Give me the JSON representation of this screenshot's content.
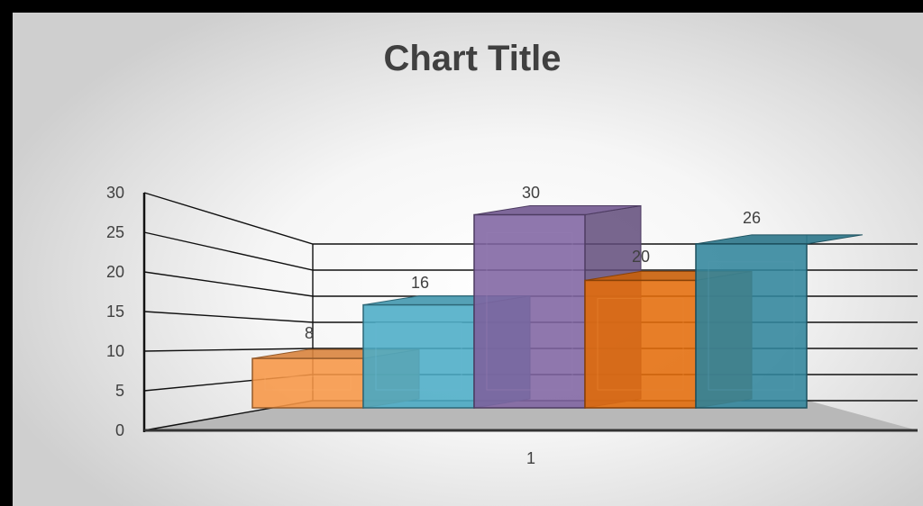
{
  "chart_data": {
    "type": "bar",
    "title": "Chart Title",
    "categories": [
      "1"
    ],
    "series": [
      {
        "values": [
          8
        ],
        "color": "#F79646"
      },
      {
        "values": [
          16
        ],
        "color": "#4BACC6"
      },
      {
        "values": [
          30
        ],
        "color": "#8064A2"
      },
      {
        "values": [
          20
        ],
        "color": "#E46C0A"
      },
      {
        "values": [
          26
        ],
        "color": "#31859C"
      }
    ],
    "yticks": [
      "0",
      "5",
      "10",
      "15",
      "20",
      "25",
      "30"
    ],
    "ylim": [
      0,
      30
    ],
    "grid": true,
    "legend": "none",
    "style": "3d-column"
  }
}
